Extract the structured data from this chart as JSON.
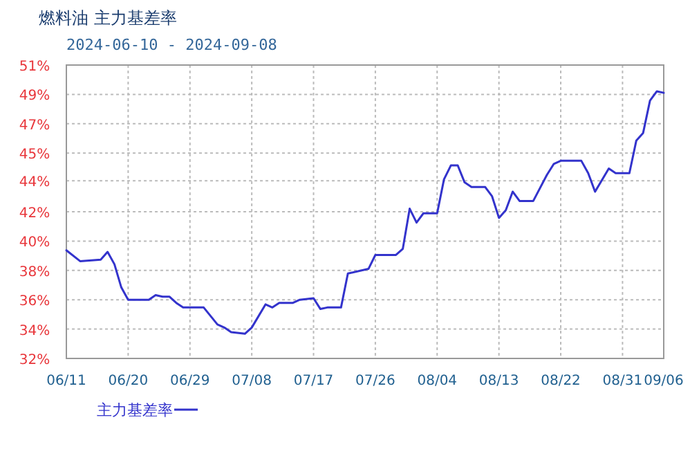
{
  "chart_data": {
    "type": "line",
    "title": "燃料油  主力基差率",
    "subtitle": "2024-06-10 - 2024-09-08",
    "x": [
      "2024-06-11",
      "2024-06-13",
      "2024-06-16",
      "2024-06-17",
      "2024-06-18",
      "2024-06-19",
      "2024-06-20",
      "2024-06-23",
      "2024-06-24",
      "2024-06-25",
      "2024-06-26",
      "2024-06-27",
      "2024-06-28",
      "2024-07-01",
      "2024-07-03",
      "2024-07-04",
      "2024-07-05",
      "2024-07-07",
      "2024-07-08",
      "2024-07-10",
      "2024-07-11",
      "2024-07-12",
      "2024-07-14",
      "2024-07-15",
      "2024-07-17",
      "2024-07-18",
      "2024-07-19",
      "2024-07-21",
      "2024-07-22",
      "2024-07-25",
      "2024-07-26",
      "2024-07-29",
      "2024-07-30",
      "2024-07-31",
      "2024-08-01",
      "2024-08-02",
      "2024-08-04",
      "2024-08-05",
      "2024-08-06",
      "2024-08-07",
      "2024-08-08",
      "2024-08-09",
      "2024-08-11",
      "2024-08-12",
      "2024-08-13",
      "2024-08-14",
      "2024-08-15",
      "2024-08-16",
      "2024-08-18",
      "2024-08-20",
      "2024-08-21",
      "2024-08-22",
      "2024-08-25",
      "2024-08-26",
      "2024-08-27",
      "2024-08-29",
      "2024-08-30",
      "2024-09-01",
      "2024-09-02",
      "2024-09-03",
      "2024-09-04",
      "2024-09-05",
      "2024-09-06"
    ],
    "series": [
      {
        "name": "主力基差率",
        "color": "#3333cc",
        "values": [
          39.0,
          38.3,
          38.4,
          38.9,
          38.1,
          36.6,
          35.8,
          35.8,
          36.1,
          36.0,
          36.0,
          35.6,
          35.3,
          35.3,
          34.2,
          34.0,
          33.7,
          33.6,
          34.0,
          35.5,
          35.3,
          35.6,
          35.6,
          35.8,
          35.9,
          35.2,
          35.3,
          35.3,
          37.5,
          37.8,
          38.7,
          38.7,
          39.1,
          41.7,
          40.8,
          41.4,
          41.4,
          43.6,
          44.5,
          44.5,
          43.4,
          43.1,
          43.1,
          42.5,
          41.1,
          41.6,
          42.8,
          42.2,
          42.2,
          43.9,
          44.6,
          44.8,
          44.8,
          44.0,
          42.8,
          44.3,
          44.0,
          44.0,
          46.1,
          46.6,
          48.7,
          49.3,
          49.2
        ]
      }
    ],
    "xlim": [
      "2024-06-11",
      "2024-09-06"
    ],
    "xticks": [
      {
        "value": "2024-06-11",
        "label": "06/11"
      },
      {
        "value": "2024-06-20",
        "label": "06/20"
      },
      {
        "value": "2024-06-29",
        "label": "06/29"
      },
      {
        "value": "2024-07-08",
        "label": "07/08"
      },
      {
        "value": "2024-07-17",
        "label": "07/17"
      },
      {
        "value": "2024-07-26",
        "label": "07/26"
      },
      {
        "value": "2024-08-04",
        "label": "08/04"
      },
      {
        "value": "2024-08-13",
        "label": "08/13"
      },
      {
        "value": "2024-08-22",
        "label": "08/22"
      },
      {
        "value": "2024-08-31",
        "label": "08/31"
      },
      {
        "value": "2024-09-06",
        "label": "09/06"
      }
    ],
    "ylim": [
      32,
      51
    ],
    "yticks": [
      {
        "value": 32,
        "label": "32%"
      },
      {
        "value": 33.9,
        "label": "34%"
      },
      {
        "value": 35.8,
        "label": "36%"
      },
      {
        "value": 37.7,
        "label": "38%"
      },
      {
        "value": 39.6,
        "label": "40%"
      },
      {
        "value": 41.5,
        "label": "42%"
      },
      {
        "value": 43.5,
        "label": "44%"
      },
      {
        "value": 45.3,
        "label": "45%"
      },
      {
        "value": 47.2,
        "label": "47%"
      },
      {
        "value": 49.1,
        "label": "49%"
      },
      {
        "value": 51,
        "label": "51%"
      }
    ],
    "grid": true,
    "legend": "bottom left",
    "marker": "none",
    "line_style": "solid"
  }
}
